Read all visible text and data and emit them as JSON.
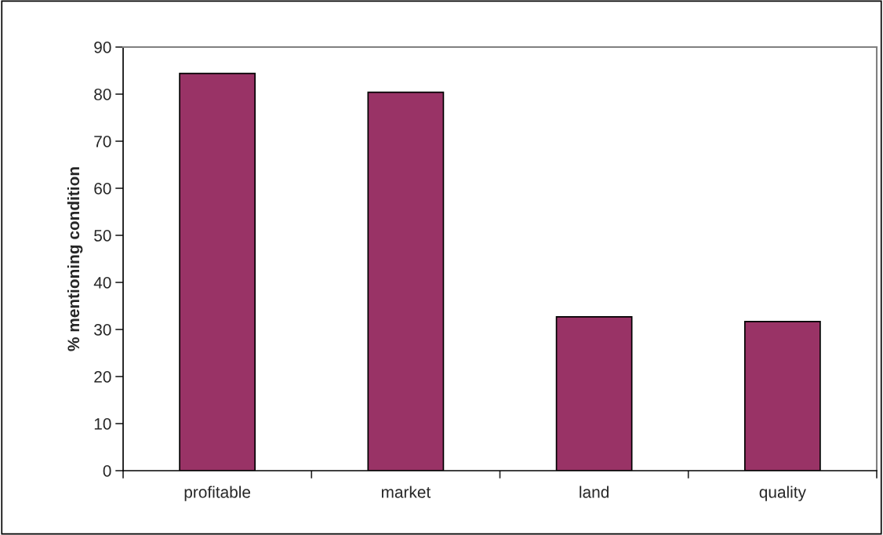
{
  "chart_data": {
    "type": "bar",
    "ylabel": "% mentioning condition",
    "categories": [
      "profitable",
      "market",
      "land",
      "quality"
    ],
    "values": [
      84.4,
      80.4,
      32.7,
      31.7
    ],
    "color": "#993366",
    "ylim": [
      0,
      90
    ],
    "yticks": [
      0,
      10,
      20,
      30,
      40,
      50,
      60,
      70,
      80,
      90
    ],
    "grid": false
  }
}
